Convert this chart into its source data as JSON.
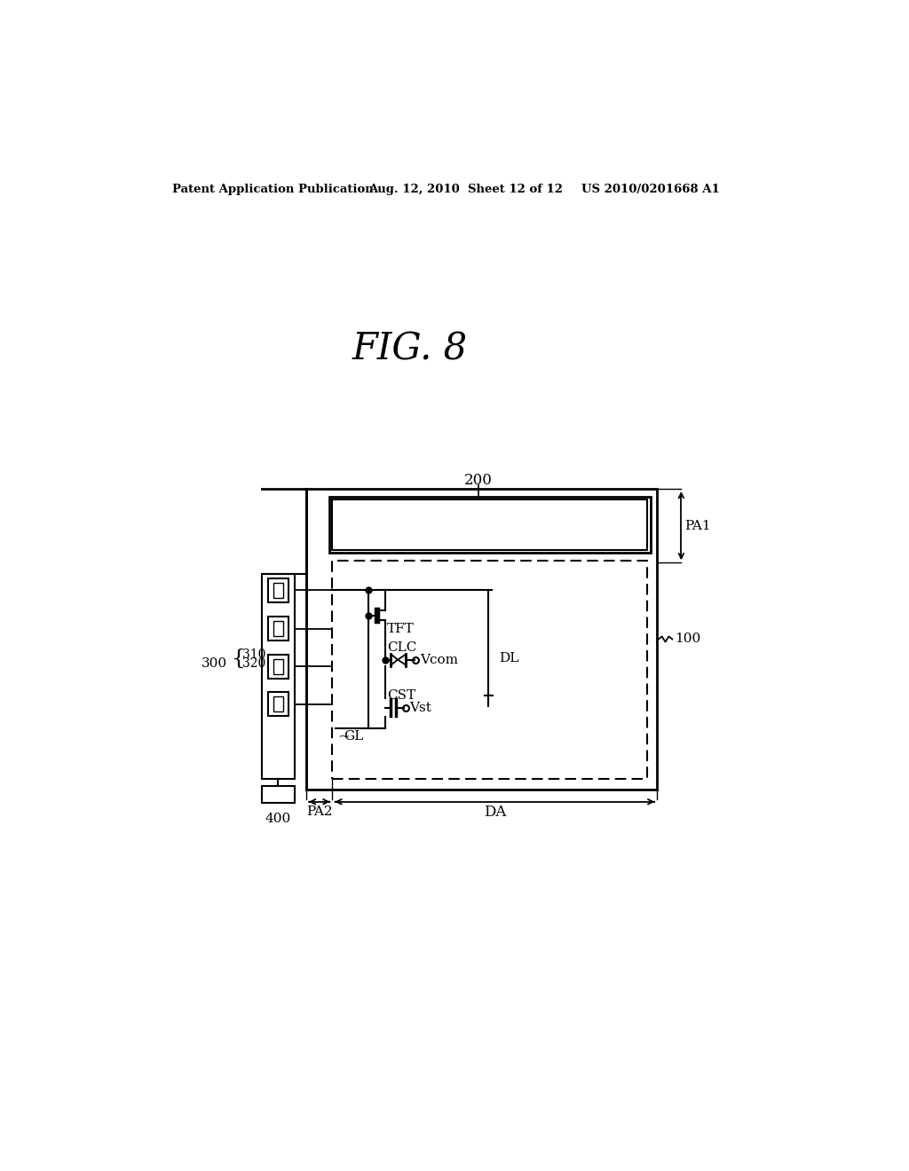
{
  "bg_color": "#ffffff",
  "title_fig": "FIG. 8",
  "header_left": "Patent Application Publication",
  "header_mid": "Aug. 12, 2010  Sheet 12 of 12",
  "header_right": "US 2010/0201668 A1",
  "label_200": "200",
  "label_100": "100",
  "label_300": "300",
  "label_310": "310",
  "label_320": "320",
  "label_400": "400",
  "label_TFT": "TFT",
  "label_CLC": "CLC",
  "label_Vcom": "Vcom",
  "label_CST": "CST",
  "label_Vst": "Vst",
  "label_GL": "GL",
  "label_DL": "DL",
  "label_PA1": "PA1",
  "label_PA2": "PA2",
  "label_DA": "DA"
}
